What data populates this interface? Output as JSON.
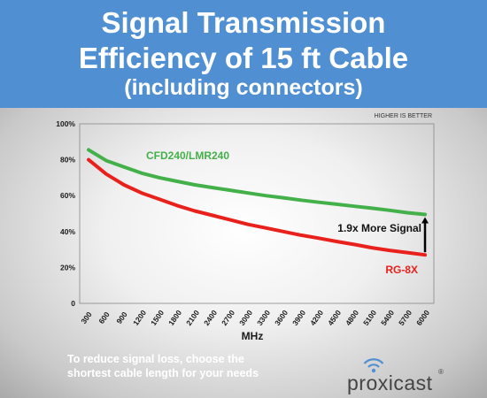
{
  "banner": {
    "line1": "Signal Transmission",
    "line2": "Efficiency of 15 ft Cable",
    "line3": "(including connectors)"
  },
  "colors": {
    "banner_bg": "#4f8fd2",
    "green_series": "#44b04a",
    "red_series": "#e8211d",
    "arrow": "#000000"
  },
  "chart_data": {
    "type": "line",
    "note": "HIGHER IS BETTER",
    "xlabel": "MHz",
    "ylabel": "",
    "x": [
      300,
      600,
      900,
      1200,
      1500,
      1800,
      2100,
      2400,
      2700,
      3000,
      3300,
      3600,
      3900,
      4200,
      4500,
      4800,
      5100,
      5400,
      5700,
      6000
    ],
    "y_ticks": [
      "0",
      "20%",
      "40%",
      "60%",
      "80%",
      "100%"
    ],
    "ylim": [
      0,
      100
    ],
    "grid": false,
    "series": [
      {
        "name": "CFD240/LMR240",
        "color": "#44b04a",
        "values": [
          85.5,
          79.5,
          76,
          72.5,
          70,
          68,
          66,
          64.5,
          63,
          61.5,
          60,
          58.8,
          57.5,
          56.3,
          55.2,
          54.1,
          53,
          51.8,
          50.5,
          49.5
        ]
      },
      {
        "name": "RG-8X",
        "color": "#e8211d",
        "values": [
          80,
          72,
          66,
          61.5,
          58,
          54.5,
          51.5,
          49,
          46.5,
          44,
          42,
          40,
          38,
          36.3,
          34.5,
          32.8,
          31,
          29.5,
          28.3,
          27
        ]
      }
    ],
    "annotations": [
      {
        "text": "1.9x More Signal",
        "type": "arrow",
        "x": 6000,
        "from": 27,
        "to": 49.5
      }
    ]
  },
  "footer": {
    "message_line1": "To reduce signal loss, choose the",
    "message_line2": "shortest cable length for your needs",
    "brand": "proxicast",
    "registered": "®"
  }
}
